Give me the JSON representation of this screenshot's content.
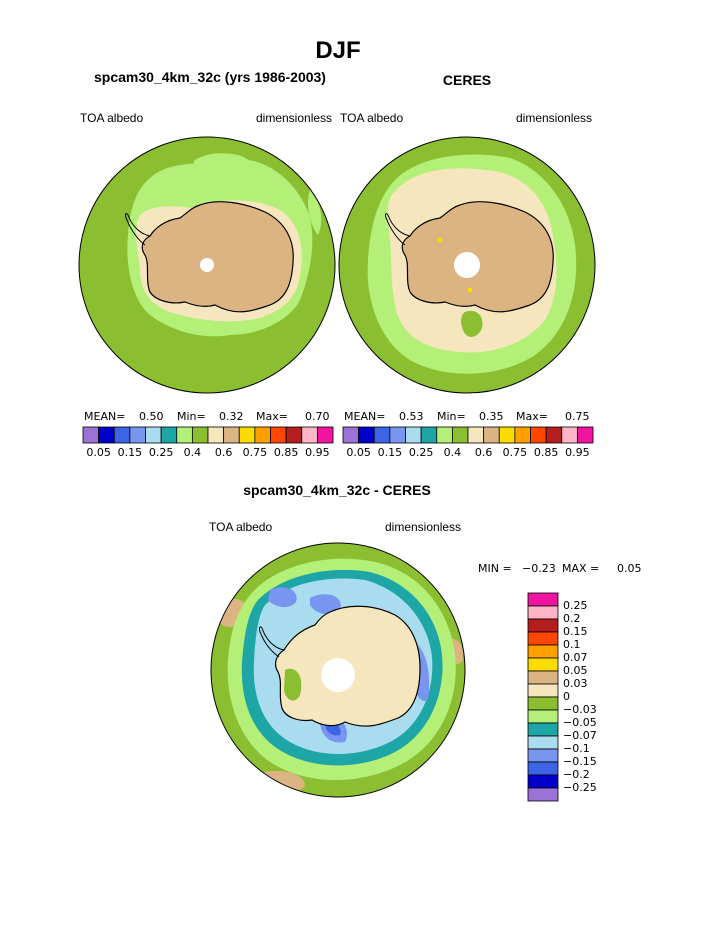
{
  "title": "DJF",
  "panels": [
    {
      "title": "spcam30_4km_32c (yrs 1986-2003)",
      "left_label": "TOA albedo",
      "right_label": "dimensionless",
      "mean_label": "MEAN=",
      "mean_value": "0.50",
      "min_label": "Min=",
      "min_value": "0.32",
      "max_label": "Max=",
      "max_value": "0.70"
    },
    {
      "title": "CERES",
      "left_label": "TOA albedo",
      "right_label": "dimensionless",
      "mean_label": "MEAN=",
      "mean_value": "0.53",
      "min_label": "Min=",
      "min_value": "0.35",
      "max_label": "Max=",
      "max_value": "0.75"
    }
  ],
  "diff_panel": {
    "title": "spcam30_4km_32c - CERES",
    "left_label": "TOA albedo",
    "right_label": "dimensionless",
    "min_label": "MIN =",
    "min_value": "−0.23",
    "max_label": "MAX =",
    "max_value": "0.05"
  },
  "chart_data": [
    {
      "type": "heatmap",
      "projection": "south polar stereographic",
      "title": "spcam30_4km_32c (yrs 1986-2003)",
      "variable": "TOA albedo",
      "units": "dimensionless",
      "mean": 0.5,
      "min": 0.32,
      "max": 0.7,
      "colorbar": {
        "tick_labels": [
          "0.05",
          "0.15",
          "0.25",
          "0.4",
          "0.6",
          "0.75",
          "0.85",
          "0.95"
        ],
        "colors": [
          "#9b72d6",
          "#0000c8",
          "#3c64e6",
          "#7896f0",
          "#aadcf0",
          "#1ea5a5",
          "#b4f078",
          "#8cbe32",
          "#f5e6be",
          "#dcb482",
          "#fadc00",
          "#ffa000",
          "#ff4600",
          "#b41e1e",
          "#ffb4c8",
          "#f014a0"
        ]
      }
    },
    {
      "type": "heatmap",
      "projection": "south polar stereographic",
      "title": "CERES",
      "variable": "TOA albedo",
      "units": "dimensionless",
      "mean": 0.53,
      "min": 0.35,
      "max": 0.75,
      "colorbar": {
        "tick_labels": [
          "0.05",
          "0.15",
          "0.25",
          "0.4",
          "0.6",
          "0.75",
          "0.85",
          "0.95"
        ],
        "colors": [
          "#9b72d6",
          "#0000c8",
          "#3c64e6",
          "#7896f0",
          "#aadcf0",
          "#1ea5a5",
          "#b4f078",
          "#8cbe32",
          "#f5e6be",
          "#dcb482",
          "#fadc00",
          "#ffa000",
          "#ff4600",
          "#b41e1e",
          "#ffb4c8",
          "#f014a0"
        ]
      }
    },
    {
      "type": "heatmap",
      "projection": "south polar stereographic",
      "title": "spcam30_4km_32c - CERES",
      "variable": "TOA albedo",
      "units": "dimensionless",
      "min": -0.23,
      "max": 0.05,
      "colorbar": {
        "tick_labels": [
          "0.25",
          "0.2",
          "0.15",
          "0.1",
          "0.07",
          "0.05",
          "0.03",
          "0",
          "−0.03",
          "−0.05",
          "−0.07",
          "−0.1",
          "−0.15",
          "−0.2",
          "−0.25"
        ],
        "colors": [
          "#f014a0",
          "#ffb4c8",
          "#b41e1e",
          "#ff4600",
          "#ffa000",
          "#fadc00",
          "#dcb482",
          "#f5e6be",
          "#8cbe32",
          "#b4f078",
          "#1ea5a5",
          "#aadcf0",
          "#7896f0",
          "#3c64e6",
          "#0000c8",
          "#9b72d6"
        ]
      }
    }
  ]
}
